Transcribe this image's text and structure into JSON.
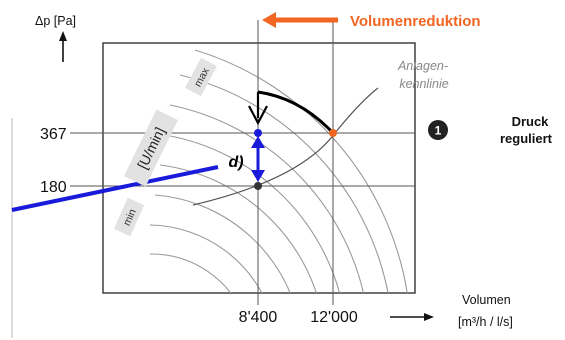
{
  "header": {
    "arrow_label": "Volumenreduktion",
    "accent_color": "#f26522"
  },
  "axes": {
    "y_label": "Δp [Pa]",
    "x_label_line1": "Volumen",
    "x_label_line2": "[m³/h / l/s]",
    "y_ticks": [
      "367",
      "180"
    ],
    "x_ticks": [
      "8'400",
      "12'000"
    ]
  },
  "fan": {
    "speed_label": "[U/min]",
    "max_label": "max",
    "min_label": "min",
    "point_label": "d)"
  },
  "system_curve": {
    "label_line1": "Anlagen-",
    "label_line2": "kennlinie"
  },
  "mode": {
    "number": "1",
    "line1": "Druck",
    "line2": "reguliert"
  },
  "chart_data": {
    "type": "line",
    "title": "",
    "xlabel": "Volumen [m³/h / l/s]",
    "ylabel": "Δp [Pa]",
    "x_ticks": [
      8400,
      12000
    ],
    "y_ticks": [
      180,
      367
    ],
    "operating_points": [
      {
        "x": 12000,
        "y": 367
      },
      {
        "x": 8400,
        "y": 367
      },
      {
        "x": 8400,
        "y": 180
      }
    ],
    "colors": {
      "orange": "#f26522",
      "blue": "#1a1adb",
      "dark": "#333333",
      "curves": "#999999"
    }
  }
}
